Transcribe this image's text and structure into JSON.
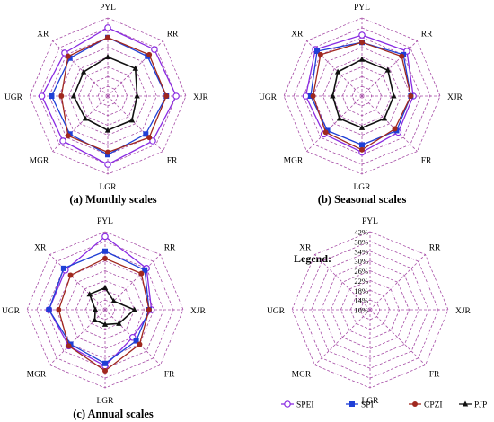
{
  "colors": {
    "grid": "#a64ca6",
    "SPEI": "#8a2be2",
    "SPI": "#1f3fd6",
    "CPZI": "#a0281e",
    "PJP": "#111111"
  },
  "legend_title": "Legend:",
  "legend_tick_labels": [
    "10%",
    "14%",
    "18%",
    "22%",
    "26%",
    "30%",
    "34%",
    "38%",
    "42%"
  ],
  "chart_data": [
    {
      "type": "radar",
      "title": "(a) Monthly scales",
      "axes": [
        "PYL",
        "RR",
        "XJR",
        "FR",
        "LGR",
        "MGR",
        "UGR",
        "XR"
      ],
      "rlim": [
        10,
        42
      ],
      "series": [
        {
          "name": "SPEI",
          "marker": "open-circle",
          "values": [
            38,
            37,
            38,
            36,
            38,
            36,
            37,
            35
          ]
        },
        {
          "name": "SPI",
          "marker": "square",
          "values": [
            34,
            33,
            34,
            32,
            34,
            32,
            33,
            32
          ]
        },
        {
          "name": "CPZI",
          "marker": "filled-circle",
          "values": [
            34,
            34,
            34,
            34,
            33,
            33,
            29,
            33
          ]
        },
        {
          "name": "PJP",
          "marker": "triangle",
          "values": [
            26,
            26,
            22,
            24,
            24,
            23,
            24,
            24
          ]
        }
      ]
    },
    {
      "type": "radar",
      "title": "(b) Seasonal scales",
      "axes": [
        "PYL",
        "RR",
        "XJR",
        "FR",
        "LGR",
        "MGR",
        "UGR",
        "XR"
      ],
      "rlim": [
        10,
        42
      ],
      "series": [
        {
          "name": "SPEI",
          "marker": "open-circle",
          "values": [
            35,
            36,
            31,
            31,
            33,
            32,
            33,
            37
          ]
        },
        {
          "name": "SPI",
          "marker": "square",
          "values": [
            32,
            34,
            30,
            30,
            30,
            30,
            31,
            36
          ]
        },
        {
          "name": "CPZI",
          "marker": "filled-circle",
          "values": [
            32,
            33,
            30,
            29,
            32,
            31,
            30,
            34
          ]
        },
        {
          "name": "PJP",
          "marker": "triangle",
          "values": [
            25,
            25,
            23,
            23,
            23,
            23,
            22,
            24
          ]
        }
      ]
    },
    {
      "type": "radar",
      "title": "(c) Annual scales",
      "axes": [
        "PYL",
        "RR",
        "XJR",
        "FR",
        "LGR",
        "MGR",
        "UGR",
        "XR"
      ],
      "rlim": [
        10,
        42
      ],
      "series": [
        {
          "name": "SPEI",
          "marker": "open-circle",
          "values": [
            40,
            34,
            29,
            26,
            33,
            31,
            33,
            33
          ]
        },
        {
          "name": "SPI",
          "marker": "square",
          "values": [
            34,
            33,
            28,
            28,
            32,
            30,
            33,
            34
          ]
        },
        {
          "name": "CPZI",
          "marker": "filled-circle",
          "values": [
            31,
            31,
            28,
            30,
            35,
            31,
            29,
            30
          ]
        },
        {
          "name": "PJP",
          "marker": "triangle",
          "values": [
            19,
            15,
            22,
            18,
            16,
            16,
            14,
            19
          ]
        }
      ]
    }
  ]
}
